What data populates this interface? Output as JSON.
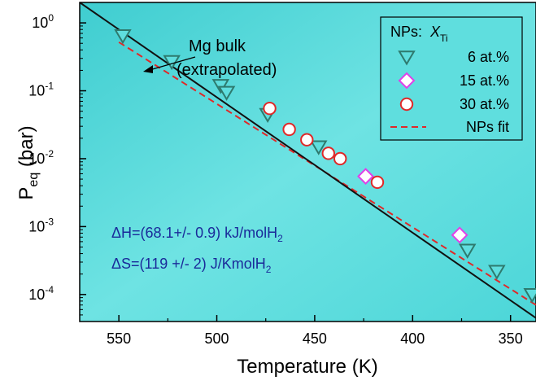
{
  "chart_data": {
    "type": "scatter",
    "title": "",
    "xlabel": "Temperature (K)",
    "ylabel_main": "P",
    "ylabel_sub": "eq",
    "ylabel_unit": " (bar)",
    "x_reversed": true,
    "xlim": [
      570,
      337
    ],
    "ylim": [
      4e-05,
      2.0
    ],
    "y_scale": "log",
    "xticks": [
      550,
      500,
      450,
      400,
      350
    ],
    "yticks": [
      {
        "value": 1,
        "exp": "0"
      },
      {
        "value": 0.1,
        "exp": "-1"
      },
      {
        "value": 0.01,
        "exp": "-2"
      },
      {
        "value": 0.001,
        "exp": "-3"
      },
      {
        "value": 0.0001,
        "exp": "-4"
      }
    ],
    "ytick_base": "10",
    "background": "#5fdede",
    "legend": {
      "position": "top-right",
      "title_prefix": "NPs:  ",
      "title_var": "X",
      "title_sub": "Ti",
      "entries": [
        {
          "label": "6 at.%",
          "marker": "triangle-down",
          "color": "#2e7a6e",
          "fill": "#5fdede"
        },
        {
          "label": "15 at.%",
          "marker": "diamond",
          "color": "#e040e8",
          "fill": "#ffffff"
        },
        {
          "label": "30 at.%",
          "marker": "circle",
          "color": "#e02828",
          "fill": "#ffffff"
        },
        {
          "label": "NPs fit",
          "marker": "dashed-line",
          "color": "#e02828"
        }
      ]
    },
    "series": [
      {
        "name": "6 at.%",
        "marker": "triangle-down",
        "color": "#2e7a6e",
        "points": [
          {
            "x": 548,
            "y": 0.65
          },
          {
            "x": 523,
            "y": 0.27
          },
          {
            "x": 498,
            "y": 0.12
          },
          {
            "x": 495,
            "y": 0.095
          },
          {
            "x": 474,
            "y": 0.045
          },
          {
            "x": 448,
            "y": 0.015
          },
          {
            "x": 372,
            "y": 0.00045
          },
          {
            "x": 357,
            "y": 0.00022
          },
          {
            "x": 339,
            "y": 0.0001
          }
        ]
      },
      {
        "name": "15 at.%",
        "marker": "diamond",
        "color": "#e040e8",
        "points": [
          {
            "x": 424,
            "y": 0.0055
          },
          {
            "x": 376,
            "y": 0.00075
          }
        ]
      },
      {
        "name": "30 at.%",
        "marker": "circle",
        "color": "#e02828",
        "points": [
          {
            "x": 473,
            "y": 0.055
          },
          {
            "x": 463,
            "y": 0.027
          },
          {
            "x": 454,
            "y": 0.019
          },
          {
            "x": 443,
            "y": 0.012
          },
          {
            "x": 437,
            "y": 0.01
          },
          {
            "x": 418,
            "y": 0.0045
          }
        ]
      },
      {
        "name": "NPs fit",
        "style": "dashed-line",
        "color": "#e02828",
        "points": [
          {
            "x": 550,
            "y": 0.52
          },
          {
            "x": 337,
            "y": 7e-05
          }
        ]
      },
      {
        "name": "Mg bulk",
        "style": "solid-line",
        "color": "#111111",
        "points": [
          {
            "x": 570,
            "y": 2.0
          },
          {
            "x": 337,
            "y": 4.5e-05
          }
        ]
      }
    ],
    "annotations": {
      "mg_bulk_line1": "Mg bulk",
      "mg_bulk_line2": "(extrapolated)",
      "dh_text": "ΔH=(68.1+/- 0.9) kJ/molH",
      "dh_sub": "2",
      "ds_text": "ΔS=(119  +/-   2) J/KmolH",
      "ds_sub": "2",
      "annotation_color": "#1a2a9a"
    }
  }
}
